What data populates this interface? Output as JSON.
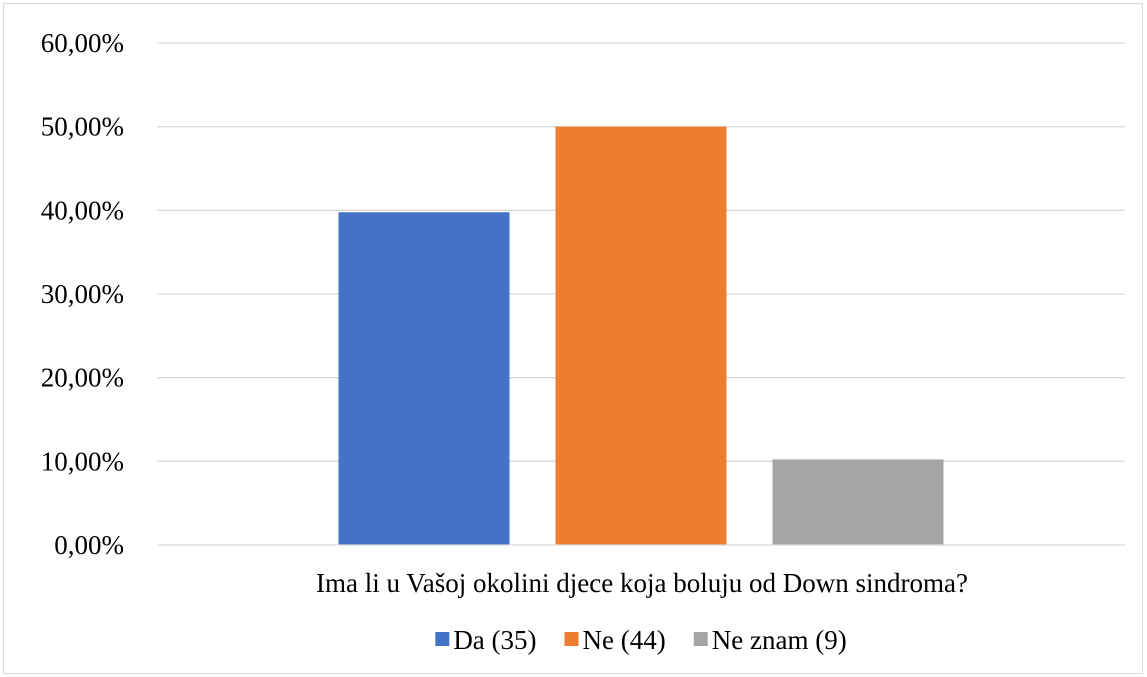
{
  "chart_data": {
    "type": "bar",
    "xlabel": "Ima li u Vašoj okolini djece koja boluju od Down sindroma?",
    "ylabel": "",
    "ylim": [
      0,
      0.6
    ],
    "y_ticks": [
      {
        "value": 0.0,
        "label": "0,00%"
      },
      {
        "value": 0.1,
        "label": "10,00%"
      },
      {
        "value": 0.2,
        "label": "20,00%"
      },
      {
        "value": 0.3,
        "label": "30,00%"
      },
      {
        "value": 0.4,
        "label": "40,00%"
      },
      {
        "value": 0.5,
        "label": "50,00%"
      },
      {
        "value": 0.6,
        "label": "60,00%"
      }
    ],
    "grid": true,
    "legend_position": "bottom",
    "series": [
      {
        "name": "Da (35)",
        "value": 0.3977,
        "color": "#4472c4"
      },
      {
        "name": "Ne (44)",
        "value": 0.5,
        "color": "#ed7d31"
      },
      {
        "name": "Ne znam (9)",
        "value": 0.1023,
        "color": "#a5a5a5"
      }
    ]
  }
}
